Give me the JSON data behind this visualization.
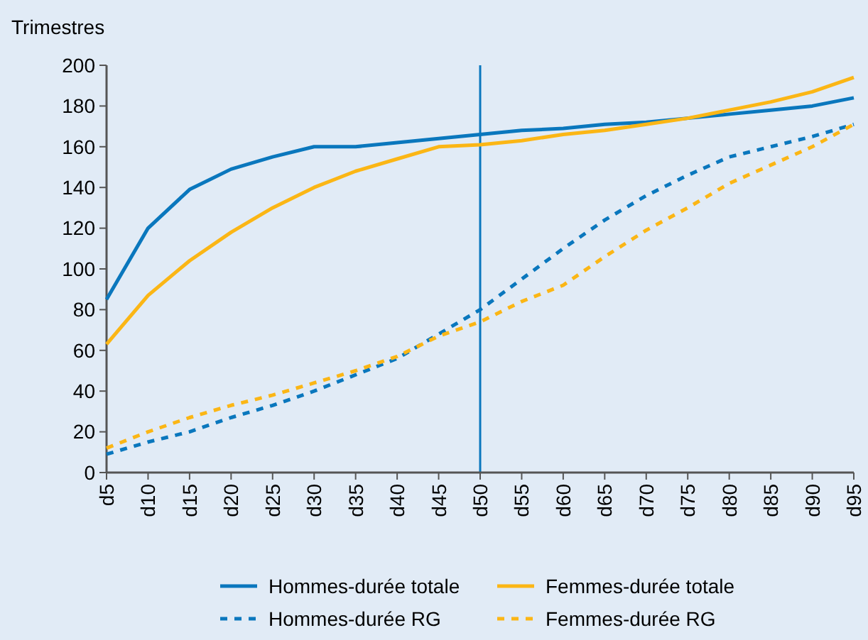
{
  "chart_data": {
    "type": "line",
    "ylabel": "Trimestres",
    "categories": [
      "d5",
      "d10",
      "d15",
      "d20",
      "d25",
      "d30",
      "d35",
      "d40",
      "d45",
      "d50",
      "d55",
      "d60",
      "d65",
      "d70",
      "d75",
      "d80",
      "d85",
      "d90",
      "d95"
    ],
    "series": [
      {
        "name": "Hommes-durée totale",
        "color": "#0a77bd",
        "line_style": "solid",
        "values": [
          85,
          120,
          139,
          149,
          155,
          160,
          160,
          162,
          164,
          166,
          168,
          169,
          171,
          172,
          174,
          176,
          178,
          180,
          184
        ]
      },
      {
        "name": "Hommes-durée RG",
        "color": "#0a77bd",
        "line_style": "dashed",
        "values": [
          9,
          15,
          20,
          27,
          33,
          40,
          48,
          56,
          68,
          80,
          95,
          110,
          124,
          136,
          146,
          155,
          160,
          165,
          171
        ]
      },
      {
        "name": "Femmes-durée totale",
        "color": "#fbb615",
        "line_style": "solid",
        "values": [
          63,
          87,
          104,
          118,
          130,
          140,
          148,
          154,
          160,
          161,
          163,
          166,
          168,
          171,
          174,
          178,
          182,
          187,
          194
        ]
      },
      {
        "name": "Femmes-durée RG",
        "color": "#fbb615",
        "line_style": "dashed",
        "values": [
          12,
          20,
          27,
          33,
          38,
          44,
          50,
          57,
          67,
          74,
          84,
          92,
          106,
          119,
          130,
          142,
          151,
          160,
          171
        ]
      }
    ],
    "ylim": [
      0,
      200
    ],
    "yticks": [
      0,
      20,
      40,
      60,
      80,
      100,
      120,
      140,
      160,
      180,
      200
    ],
    "grid": false,
    "legend": "bottom",
    "marker": "none",
    "ref_lines": [
      {
        "axis": "x",
        "value": "d50",
        "color": "#0a77bd",
        "line_style": "solid"
      }
    ]
  }
}
